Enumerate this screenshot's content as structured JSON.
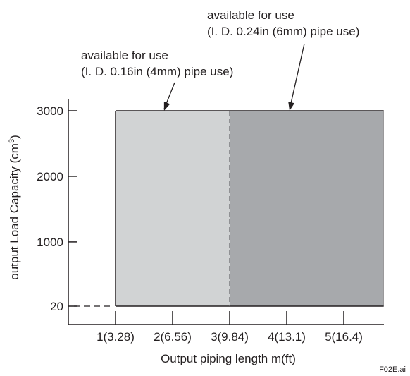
{
  "chart_data": {
    "type": "area",
    "xlabel": "Output piping length m(ft)",
    "ylabel_main": "output Load Capacity (cm",
    "ylabel_sup": "3",
    "ylabel_close": ")",
    "x_ticks": [
      {
        "x": 1,
        "label": "1(3.28)"
      },
      {
        "x": 2,
        "label": "2(6.56)"
      },
      {
        "x": 3,
        "label": "3(9.84)"
      },
      {
        "x": 4,
        "label": "4(13.1)"
      },
      {
        "x": 5,
        "label": "5(16.4)"
      }
    ],
    "y_ticks": [
      {
        "y": 20,
        "label": "20"
      },
      {
        "y": 1000,
        "label": "1000"
      },
      {
        "y": 2000,
        "label": "2000"
      },
      {
        "y": 3000,
        "label": "3000"
      }
    ],
    "xlim": [
      0.2,
      5.7
    ],
    "regions": [
      {
        "name": "available for use (I. D. 0.16in (4mm) pipe use)",
        "x": [
          1,
          3
        ],
        "y": [
          20,
          3000
        ],
        "color": "#d1d3d4"
      },
      {
        "name": "available for use (I. D. 0.24in (6mm) pipe use)",
        "x": [
          3,
          5.7
        ],
        "y": [
          20,
          3000
        ],
        "color": "#a7a9ac"
      }
    ],
    "annotations": [
      {
        "name": "annot-4mm",
        "lines": [
          "available for use",
          "(I. D. 0.16in (4mm) pipe use)"
        ],
        "arrow_to": [
          1.85,
          3000
        ]
      },
      {
        "name": "annot-6mm",
        "lines": [
          "available for use",
          "(I. D. 0.24in (6mm) pipe use)"
        ],
        "arrow_to": [
          4.05,
          3000
        ]
      }
    ],
    "grid": false,
    "figure_id": "F02E.ai"
  }
}
